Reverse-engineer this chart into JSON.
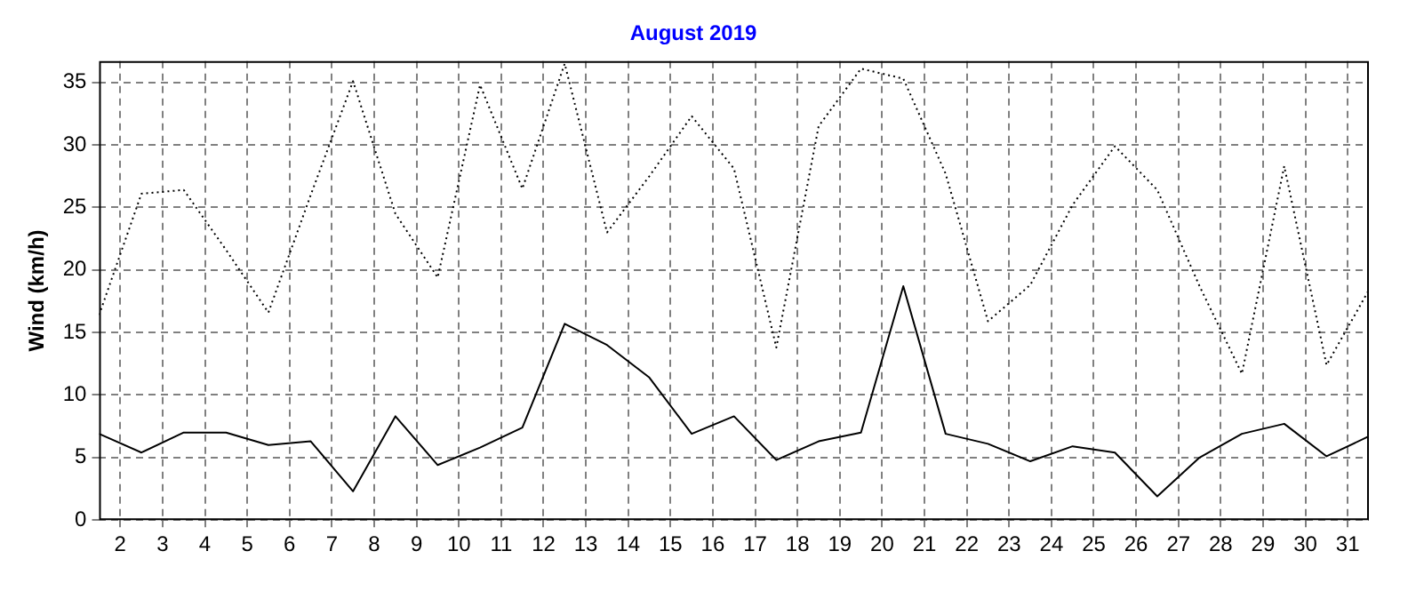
{
  "chart_data": {
    "type": "line",
    "title": "August 2019",
    "ylabel": "Wind (km/h)",
    "x": [
      1.5,
      2.5,
      3.5,
      4.5,
      5.5,
      6.5,
      7.5,
      8.5,
      9.5,
      10.5,
      11.5,
      12.5,
      13.5,
      14.5,
      15.5,
      16.5,
      17.5,
      18.5,
      19.5,
      20.5,
      21.5,
      22.5,
      23.5,
      24.5,
      25.5,
      26.5,
      27.5,
      28.5,
      29.5,
      30.5,
      31.5
    ],
    "series": [
      {
        "color": "#000000",
        "line_style": "dotted",
        "values": [
          16.4,
          26.1,
          26.4,
          21.6,
          16.6,
          26,
          35.1,
          24.5,
          19.4,
          34.8,
          26.5,
          36.5,
          23,
          27.5,
          32.3,
          28.1,
          13.8,
          31.5,
          36.1,
          35.3,
          27.7,
          15.9,
          18.8,
          25.2,
          29.9,
          26.4,
          18.7,
          11.7,
          28.3,
          12.4,
          18.4
        ]
      },
      {
        "color": "#000000",
        "line_style": "solid",
        "values": [
          6.9,
          5.4,
          7,
          7,
          6,
          6.3,
          2.3,
          8.3,
          4.4,
          5.8,
          7.4,
          15.7,
          14,
          11.4,
          6.9,
          8.3,
          4.8,
          6.3,
          7,
          18.7,
          6.9,
          6.1,
          4.7,
          5.9,
          5.4,
          1.9,
          5,
          6.9,
          7.7,
          5.1,
          6.7
        ]
      }
    ],
    "xlim": [
      1.5,
      31.5
    ],
    "xticks": [
      2,
      3,
      4,
      5,
      6,
      7,
      8,
      9,
      10,
      11,
      12,
      13,
      14,
      15,
      16,
      17,
      18,
      19,
      20,
      21,
      22,
      23,
      24,
      25,
      26,
      27,
      28,
      29,
      30,
      31
    ],
    "ylim": [
      0,
      36.7
    ],
    "yticks": [
      0,
      5,
      10,
      15,
      20,
      25,
      30,
      35
    ],
    "grid": true,
    "legend": false,
    "marker": "none"
  }
}
